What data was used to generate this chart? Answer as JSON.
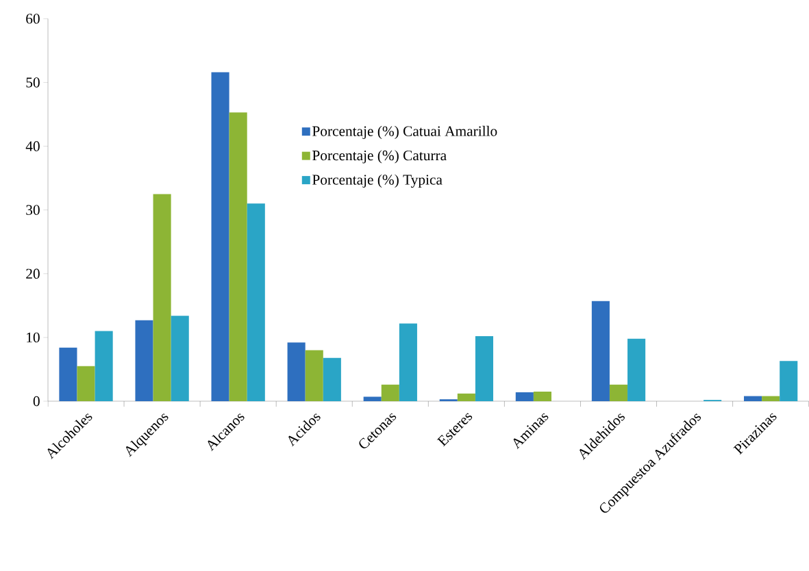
{
  "chart_data": {
    "type": "bar",
    "categories": [
      "Alcoholes",
      "Alquenos",
      "Alcanos",
      "Acidos",
      "Cetonas",
      "Esteres",
      "Aminas",
      "Aldehidos",
      "Compuestoa Azufrados",
      "Pirazinas"
    ],
    "series": [
      {
        "name": "Porcentaje (%) Catuai Amarillo",
        "color": "#2e6fbf",
        "values": [
          8.4,
          12.7,
          51.6,
          9.2,
          0.7,
          0.3,
          1.4,
          15.7,
          0,
          0.8
        ]
      },
      {
        "name": "Porcentaje (%) Caturra",
        "color": "#8db535",
        "values": [
          5.5,
          32.5,
          45.3,
          8.0,
          2.6,
          1.2,
          1.5,
          2.6,
          0,
          0.8
        ]
      },
      {
        "name": "Porcentaje (%) Typica",
        "color": "#2aa5c6",
        "values": [
          11.0,
          13.4,
          31.0,
          6.8,
          12.2,
          10.2,
          0,
          9.8,
          0.2,
          6.3
        ]
      }
    ],
    "ylim": [
      0,
      60
    ],
    "yticks": [
      0,
      10,
      20,
      30,
      40,
      50,
      60
    ],
    "grid": false,
    "legend": "top"
  }
}
